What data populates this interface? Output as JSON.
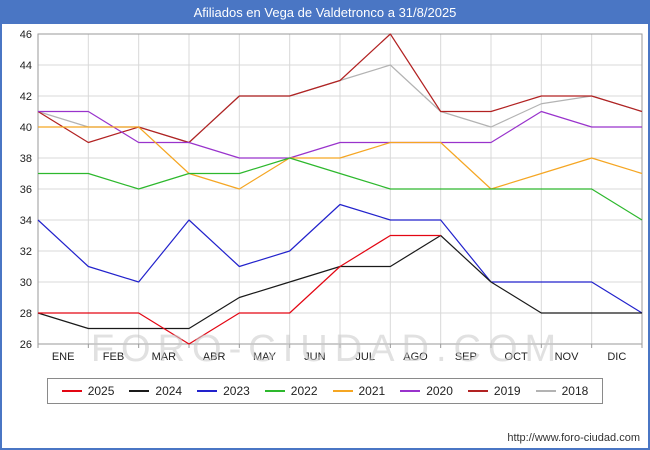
{
  "title": "Afiliados en Vega de Valdetronco a 31/8/2025",
  "watermark": "FORO-CIUDAD.COM",
  "footer_url": "http://www.foro-ciudad.com",
  "colors": {
    "header_bar": "#4a76c4",
    "frame_border": "#4a76c4",
    "gridline": "#d9d9d9",
    "plot_border": "#9a9a9a",
    "axis_text": "#222222"
  },
  "chart_data": {
    "type": "line",
    "title": "Afiliados en Vega de Valdetronco a 31/8/2025",
    "x_tick_labels": [
      "ENE",
      "FEB",
      "MAR",
      "ABR",
      "MAY",
      "JUN",
      "JUL",
      "AGO",
      "SEP",
      "OCT",
      "NOV",
      "DIC"
    ],
    "x_note": "first value of each series is December of the previous year (left plot edge), then ENE..DIC",
    "ylim": [
      26,
      46
    ],
    "y_tick_step": 2,
    "grid": true,
    "legend_position": "bottom",
    "series": [
      {
        "name": "2025",
        "color": "#e30613",
        "values": [
          28,
          28,
          28,
          26,
          28,
          28,
          31,
          33,
          33
        ]
      },
      {
        "name": "2024",
        "color": "#1a1a1a",
        "values": [
          28,
          27,
          27,
          27,
          29,
          30,
          31,
          31,
          33,
          30,
          28,
          28,
          28
        ]
      },
      {
        "name": "2023",
        "color": "#2222cc",
        "values": [
          34,
          31,
          30,
          34,
          31,
          32,
          35,
          34,
          34,
          30,
          30,
          30,
          28
        ]
      },
      {
        "name": "2022",
        "color": "#2db82d",
        "values": [
          37,
          37,
          36,
          37,
          37,
          38,
          37,
          36,
          36,
          36,
          36,
          36,
          34
        ]
      },
      {
        "name": "2021",
        "color": "#f5a623",
        "values": [
          40,
          40,
          40,
          37,
          36,
          38,
          38,
          39,
          39,
          36,
          37,
          38,
          37
        ]
      },
      {
        "name": "2020",
        "color": "#9933cc",
        "values": [
          41,
          41,
          39,
          39,
          38,
          38,
          39,
          39,
          39,
          39,
          41,
          40,
          40
        ]
      },
      {
        "name": "2019",
        "color": "#b22222",
        "values": [
          41,
          39,
          40,
          39,
          42,
          42,
          43,
          46,
          41,
          41,
          42,
          42,
          41
        ]
      },
      {
        "name": "2018",
        "color": "#b3b3b3",
        "values": [
          41,
          40,
          40,
          39,
          42,
          42,
          43,
          44,
          41,
          40,
          41.5,
          42,
          41
        ]
      }
    ]
  }
}
